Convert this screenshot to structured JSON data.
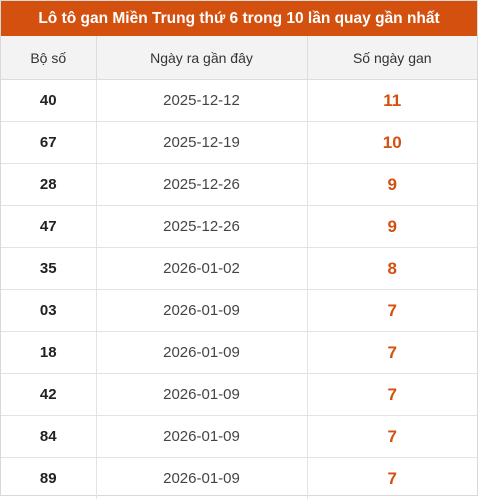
{
  "title": "Lô tô gan Miền Trung thứ 6 trong 10 lần quay gần nhất",
  "accent_color": "#d4500f",
  "columns": [
    "Bộ số",
    "Ngày ra gần đây",
    "Số ngày gan"
  ],
  "rows": [
    {
      "number": "40",
      "last_date": "2025-12-12",
      "gan_days": "11"
    },
    {
      "number": "67",
      "last_date": "2025-12-19",
      "gan_days": "10"
    },
    {
      "number": "28",
      "last_date": "2025-12-26",
      "gan_days": "9"
    },
    {
      "number": "47",
      "last_date": "2025-12-26",
      "gan_days": "9"
    },
    {
      "number": "35",
      "last_date": "2026-01-02",
      "gan_days": "8"
    },
    {
      "number": "03",
      "last_date": "2026-01-09",
      "gan_days": "7"
    },
    {
      "number": "18",
      "last_date": "2026-01-09",
      "gan_days": "7"
    },
    {
      "number": "42",
      "last_date": "2026-01-09",
      "gan_days": "7"
    },
    {
      "number": "84",
      "last_date": "2026-01-09",
      "gan_days": "7"
    },
    {
      "number": "89",
      "last_date": "2026-01-09",
      "gan_days": "7"
    }
  ]
}
